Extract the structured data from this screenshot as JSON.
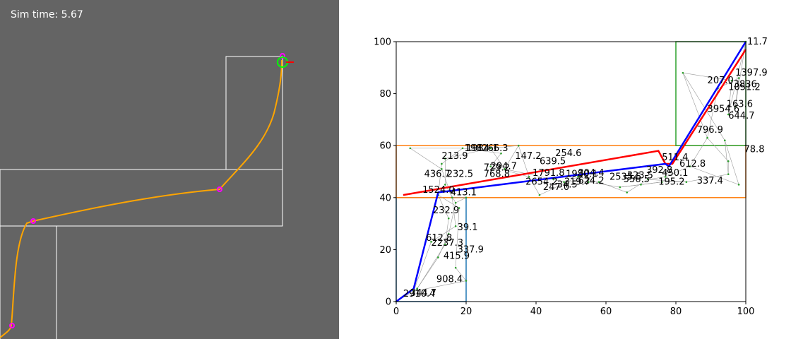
{
  "simulation": {
    "time_label": "Sim time: 5.67",
    "colors": {
      "background": "#646464",
      "corridor_outline": "#ffffff",
      "trajectory": "#ffa500",
      "waypoint": "#ff00ff",
      "goal_ring": "#00ff00",
      "heading_marker": "#ff0000"
    }
  },
  "chart_data": {
    "type": "line",
    "xlim": [
      0,
      100
    ],
    "ylim": [
      0,
      100
    ],
    "xticks": [
      0,
      20,
      40,
      60,
      80,
      100
    ],
    "yticks": [
      0,
      20,
      40,
      60,
      80,
      100
    ],
    "grid": false,
    "regions": [
      {
        "color": "#1f77b4",
        "x": [
          0,
          20
        ],
        "y": [
          0,
          40
        ]
      },
      {
        "color": "#ff7f0e",
        "x": [
          0,
          100
        ],
        "y": [
          40,
          60
        ]
      },
      {
        "color": "#2ca02c",
        "x": [
          80,
          100
        ],
        "y": [
          60,
          100
        ]
      }
    ],
    "graph_nodes": [
      [
        0,
        0
      ],
      [
        5,
        4
      ],
      [
        6,
        5
      ],
      [
        12,
        17
      ],
      [
        10,
        23
      ],
      [
        14,
        22
      ],
      [
        15,
        26
      ],
      [
        17,
        29
      ],
      [
        15,
        32
      ],
      [
        17,
        38
      ],
      [
        16,
        40
      ],
      [
        12,
        41
      ],
      [
        14,
        45
      ],
      [
        13,
        51
      ],
      [
        13,
        53
      ],
      [
        14,
        55
      ],
      [
        4,
        59
      ],
      [
        19,
        59
      ],
      [
        27,
        59
      ],
      [
        30,
        57
      ],
      [
        35,
        60
      ],
      [
        27,
        52
      ],
      [
        31,
        51
      ],
      [
        38,
        48
      ],
      [
        45,
        47
      ],
      [
        41,
        41
      ],
      [
        48,
        46
      ],
      [
        52,
        48
      ],
      [
        55,
        46
      ],
      [
        58,
        46
      ],
      [
        64,
        44
      ],
      [
        66,
        42
      ],
      [
        70,
        45
      ],
      [
        72,
        47
      ],
      [
        76,
        46
      ],
      [
        77,
        48
      ],
      [
        83,
        46
      ],
      [
        84,
        52
      ],
      [
        95,
        49
      ],
      [
        98,
        45
      ],
      [
        95,
        54
      ],
      [
        94,
        62
      ],
      [
        89,
        63
      ],
      [
        82,
        88
      ],
      [
        92,
        82
      ],
      [
        96,
        85
      ],
      [
        98,
        86
      ],
      [
        95,
        72
      ],
      [
        97,
        75
      ],
      [
        100,
        100
      ],
      [
        12,
        41
      ],
      [
        20,
        40
      ],
      [
        18,
        36
      ],
      [
        17,
        13
      ],
      [
        20,
        8
      ]
    ],
    "graph_edges": [
      [
        0,
        1
      ],
      [
        1,
        2
      ],
      [
        2,
        3
      ],
      [
        1,
        4
      ],
      [
        2,
        5
      ],
      [
        3,
        6
      ],
      [
        4,
        7
      ],
      [
        5,
        8
      ],
      [
        6,
        9
      ],
      [
        7,
        10
      ],
      [
        8,
        11
      ],
      [
        9,
        12
      ],
      [
        10,
        13
      ],
      [
        11,
        14
      ],
      [
        12,
        15
      ],
      [
        13,
        16
      ],
      [
        14,
        17
      ],
      [
        15,
        18
      ],
      [
        16,
        17
      ],
      [
        17,
        19
      ],
      [
        18,
        20
      ],
      [
        19,
        21
      ],
      [
        20,
        22
      ],
      [
        21,
        23
      ],
      [
        22,
        24
      ],
      [
        23,
        25
      ],
      [
        24,
        26
      ],
      [
        25,
        27
      ],
      [
        26,
        28
      ],
      [
        27,
        29
      ],
      [
        28,
        30
      ],
      [
        29,
        31
      ],
      [
        30,
        32
      ],
      [
        31,
        33
      ],
      [
        32,
        34
      ],
      [
        33,
        35
      ],
      [
        34,
        36
      ],
      [
        35,
        37
      ],
      [
        36,
        38
      ],
      [
        37,
        39
      ],
      [
        38,
        40
      ],
      [
        39,
        41
      ],
      [
        40,
        42
      ],
      [
        41,
        43
      ],
      [
        42,
        44
      ],
      [
        43,
        45
      ],
      [
        44,
        46
      ],
      [
        45,
        47
      ],
      [
        46,
        48
      ],
      [
        47,
        49
      ],
      [
        48,
        49
      ],
      [
        42,
        43
      ],
      [
        37,
        42
      ],
      [
        11,
        52
      ],
      [
        52,
        53
      ],
      [
        53,
        54
      ],
      [
        54,
        1
      ],
      [
        10,
        51
      ],
      [
        51,
        9
      ],
      [
        20,
        23
      ],
      [
        18,
        22
      ],
      [
        30,
        34
      ],
      [
        33,
        36
      ],
      [
        38,
        41
      ]
    ],
    "node_labels": [
      {
        "text": "11.7",
        "x": 100.4,
        "y": 100
      },
      {
        "text": "1397.9",
        "x": 97,
        "y": 88
      },
      {
        "text": "207.0",
        "x": 89,
        "y": 85
      },
      {
        "text": "1051.2",
        "x": 95,
        "y": 82.5
      },
      {
        "text": "3836",
        "x": 96.5,
        "y": 83.5
      },
      {
        "text": "163.6",
        "x": 94.5,
        "y": 76
      },
      {
        "text": "3954.6",
        "x": 89,
        "y": 74
      },
      {
        "text": "644.7",
        "x": 95,
        "y": 71.5
      },
      {
        "text": "796.9",
        "x": 86,
        "y": 66
      },
      {
        "text": "78.8",
        "x": 99.5,
        "y": 58.5
      },
      {
        "text": "198266.3",
        "x": 19.5,
        "y": 59
      },
      {
        "text": "1984.1",
        "x": 20,
        "y": 59
      },
      {
        "text": "213.9",
        "x": 13,
        "y": 56
      },
      {
        "text": "147.2",
        "x": 34,
        "y": 56
      },
      {
        "text": "254.6",
        "x": 45.5,
        "y": 57
      },
      {
        "text": "639.5",
        "x": 41,
        "y": 54
      },
      {
        "text": "511.4",
        "x": 76,
        "y": 55.5
      },
      {
        "text": "612.8",
        "x": 81,
        "y": 53
      },
      {
        "text": "294.7",
        "x": 27,
        "y": 52
      },
      {
        "text": "729.2",
        "x": 25,
        "y": 51.5
      },
      {
        "text": "436.7",
        "x": 8,
        "y": 49
      },
      {
        "text": "232.5",
        "x": 14.5,
        "y": 49
      },
      {
        "text": "768.8",
        "x": 25,
        "y": 49
      },
      {
        "text": "1791.8",
        "x": 39,
        "y": 49.5
      },
      {
        "text": "304.4",
        "x": 52,
        "y": 49.5
      },
      {
        "text": "1980.1",
        "x": 48.5,
        "y": 49
      },
      {
        "text": "392.8",
        "x": 71.5,
        "y": 50.5
      },
      {
        "text": "450.1",
        "x": 76,
        "y": 49.5
      },
      {
        "text": "2535.5",
        "x": 61,
        "y": 48
      },
      {
        "text": "323.5",
        "x": 66,
        "y": 48.5
      },
      {
        "text": "556.5",
        "x": 65,
        "y": 47
      },
      {
        "text": "2654.2",
        "x": 37,
        "y": 46
      },
      {
        "text": "624.2",
        "x": 52,
        "y": 46.5
      },
      {
        "text": "319.7",
        "x": 48,
        "y": 46
      },
      {
        "text": "195.2",
        "x": 75,
        "y": 46
      },
      {
        "text": "337.4",
        "x": 86,
        "y": 46.5
      },
      {
        "text": "247.0",
        "x": 42,
        "y": 44
      },
      {
        "text": "34.5",
        "x": 46,
        "y": 45
      },
      {
        "text": "1524.0",
        "x": 7.5,
        "y": 43
      },
      {
        "text": "413.1",
        "x": 15.5,
        "y": 42
      },
      {
        "text": "232.9",
        "x": 10.5,
        "y": 35
      },
      {
        "text": "39.1",
        "x": 17.5,
        "y": 28.5
      },
      {
        "text": "612.8",
        "x": 8.5,
        "y": 24.5
      },
      {
        "text": "2237.3",
        "x": 10,
        "y": 22.5
      },
      {
        "text": "337.9",
        "x": 17.5,
        "y": 20
      },
      {
        "text": "415.9",
        "x": 13.5,
        "y": 17.5
      },
      {
        "text": "908.4",
        "x": 11.5,
        "y": 8.5
      },
      {
        "text": "2910.4",
        "x": 2,
        "y": 3
      },
      {
        "text": "344.7",
        "x": 4,
        "y": 3.2
      }
    ],
    "series": [
      {
        "color": "#ff0000",
        "x": [
          2,
          75,
          77,
          79,
          100
        ],
        "y": [
          41,
          58,
          53,
          53,
          97
        ]
      },
      {
        "color": "#0000ff",
        "x": [
          0,
          5,
          12,
          12,
          77,
          78,
          100
        ],
        "y": [
          0,
          5,
          42,
          42,
          53,
          52,
          100
        ]
      }
    ]
  }
}
